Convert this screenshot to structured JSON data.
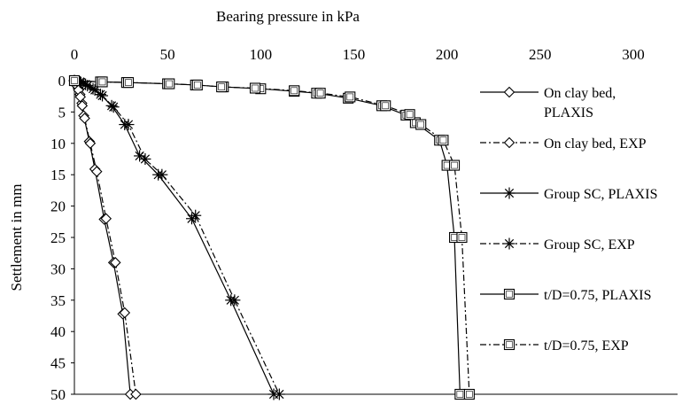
{
  "chart_data": {
    "type": "line",
    "xlabel": "Bearing pressure in kPa",
    "ylabel": "Settlement in mm",
    "x_ticks": [
      "0",
      "50",
      "100",
      "150",
      "200",
      "250",
      "300"
    ],
    "y_ticks": [
      "0",
      "5",
      "10",
      "15",
      "20",
      "25",
      "30",
      "35",
      "40",
      "45",
      "50"
    ],
    "xlim": [
      0,
      310
    ],
    "ylim": [
      0,
      50
    ],
    "x_axis_position": "top",
    "y_axis_inverted": true,
    "grid": false,
    "legend_position": "right",
    "series": [
      {
        "name": "On clay bed, PLAXIS",
        "line_style": "solid",
        "marker": "diamond",
        "points": [
          [
            0,
            0
          ],
          [
            0.5,
            0.3
          ],
          [
            1,
            0.6
          ],
          [
            2,
            1.2
          ],
          [
            3,
            2.2
          ],
          [
            4,
            3.6
          ],
          [
            5,
            5.6
          ],
          [
            8,
            9.7
          ],
          [
            11,
            14.1
          ],
          [
            16,
            22.1
          ],
          [
            21,
            29.0
          ],
          [
            26,
            37.2
          ],
          [
            30,
            50
          ]
        ]
      },
      {
        "name": "On clay bed, EXP",
        "line_style": "dash-dot",
        "marker": "diamond-open",
        "points": [
          [
            0,
            0
          ],
          [
            0.6,
            0.4
          ],
          [
            1.2,
            0.8
          ],
          [
            2.2,
            1.5
          ],
          [
            3.2,
            2.6
          ],
          [
            4.2,
            4.0
          ],
          [
            5.5,
            6.0
          ],
          [
            8.5,
            10.0
          ],
          [
            12,
            14.5
          ],
          [
            17,
            22.0
          ],
          [
            22,
            29.0
          ],
          [
            27,
            37.0
          ],
          [
            33,
            50
          ]
        ]
      },
      {
        "name": "Group SC, PLAXIS",
        "line_style": "solid",
        "marker": "asterisk",
        "points": [
          [
            0,
            0
          ],
          [
            3,
            0.2
          ],
          [
            6,
            0.6
          ],
          [
            10,
            1.3
          ],
          [
            14,
            2.2
          ],
          [
            20,
            4.0
          ],
          [
            27,
            7.0
          ],
          [
            35,
            12.0
          ],
          [
            45,
            15.0
          ],
          [
            63,
            22.0
          ],
          [
            84,
            35.0
          ],
          [
            107,
            50
          ]
        ]
      },
      {
        "name": "Group SC, EXP",
        "line_style": "dash-dot",
        "marker": "asterisk",
        "points": [
          [
            0,
            0
          ],
          [
            3.5,
            0.3
          ],
          [
            7,
            0.8
          ],
          [
            11,
            1.5
          ],
          [
            15,
            2.4
          ],
          [
            21,
            4.2
          ],
          [
            29,
            7.0
          ],
          [
            38,
            12.5
          ],
          [
            47,
            15.0
          ],
          [
            65,
            21.5
          ],
          [
            86,
            35.0
          ],
          [
            110,
            50
          ]
        ]
      },
      {
        "name": "t/D=0.75, PLAXIS",
        "line_style": "solid",
        "marker": "square-open",
        "points": [
          [
            0,
            0
          ],
          [
            14,
            0.2
          ],
          [
            28,
            0.3
          ],
          [
            50,
            0.5
          ],
          [
            65,
            0.7
          ],
          [
            80,
            1.0
          ],
          [
            100,
            1.3
          ],
          [
            118,
            1.7
          ],
          [
            130,
            2.0
          ],
          [
            147,
            2.8
          ],
          [
            165,
            4.0
          ],
          [
            178,
            5.5
          ],
          [
            183,
            6.7
          ],
          [
            196,
            9.5
          ],
          [
            200,
            13.5
          ],
          [
            204,
            25.0
          ],
          [
            207,
            50
          ]
        ]
      },
      {
        "name": "t/D=0.75, EXP",
        "line_style": "dash-dot",
        "marker": "square-open",
        "points": [
          [
            0,
            0
          ],
          [
            15,
            0.2
          ],
          [
            29,
            0.3
          ],
          [
            51,
            0.5
          ],
          [
            66,
            0.7
          ],
          [
            79,
            1.0
          ],
          [
            97,
            1.2
          ],
          [
            118,
            1.6
          ],
          [
            132,
            2.0
          ],
          [
            148,
            2.6
          ],
          [
            167,
            4.0
          ],
          [
            180,
            5.4
          ],
          [
            186,
            7.0
          ],
          [
            198,
            9.5
          ],
          [
            204,
            13.5
          ],
          [
            208,
            25.0
          ],
          [
            212,
            50
          ]
        ]
      }
    ]
  }
}
